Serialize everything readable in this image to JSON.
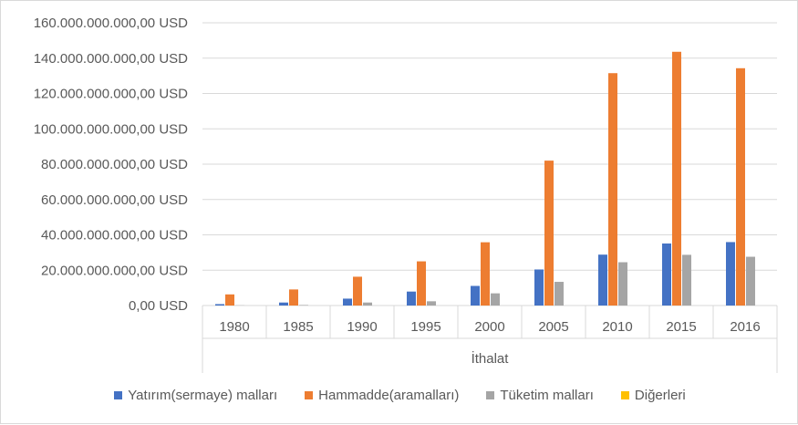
{
  "chart_data": {
    "type": "bar",
    "categories": [
      "1980",
      "1985",
      "1990",
      "1995",
      "2000",
      "2005",
      "2010",
      "2015",
      "2016"
    ],
    "group_label": "İthalat",
    "y_ticks": [
      "0,00 USD",
      "20.000.000.000,00 USD",
      "40.000.000.000,00 USD",
      "60.000.000.000,00 USD",
      "80.000.000.000,00 USD",
      "100.000.000.000,00 USD",
      "120.000.000.000,00 USD",
      "140.000.000.000,00 USD",
      "160.000.000.000,00 USD"
    ],
    "ylim": [
      0,
      160000000000
    ],
    "grid": true,
    "legend_position": "bottom",
    "series": [
      {
        "name": "Yatırım(sermaye) malları",
        "color": "#4472c4",
        "values": [
          800000000,
          1700000000,
          3900000000,
          7900000000,
          11100000000,
          20400000000,
          28800000000,
          35100000000,
          35900000000
        ]
      },
      {
        "name": "Hammadde(aramalları)",
        "color": "#ed7d31",
        "values": [
          6300000000,
          9100000000,
          16300000000,
          25000000000,
          35800000000,
          82000000000,
          131500000000,
          143600000000,
          134300000000
        ]
      },
      {
        "name": "Tüketim malları",
        "color": "#a5a5a5",
        "values": [
          100000000,
          300000000,
          1700000000,
          2400000000,
          6900000000,
          13400000000,
          24500000000,
          28700000000,
          27600000000
        ]
      },
      {
        "name": "Diğerleri",
        "color": "#ffc000",
        "values": [
          0,
          0,
          0,
          0,
          0,
          0,
          0,
          0,
          0
        ]
      }
    ]
  }
}
